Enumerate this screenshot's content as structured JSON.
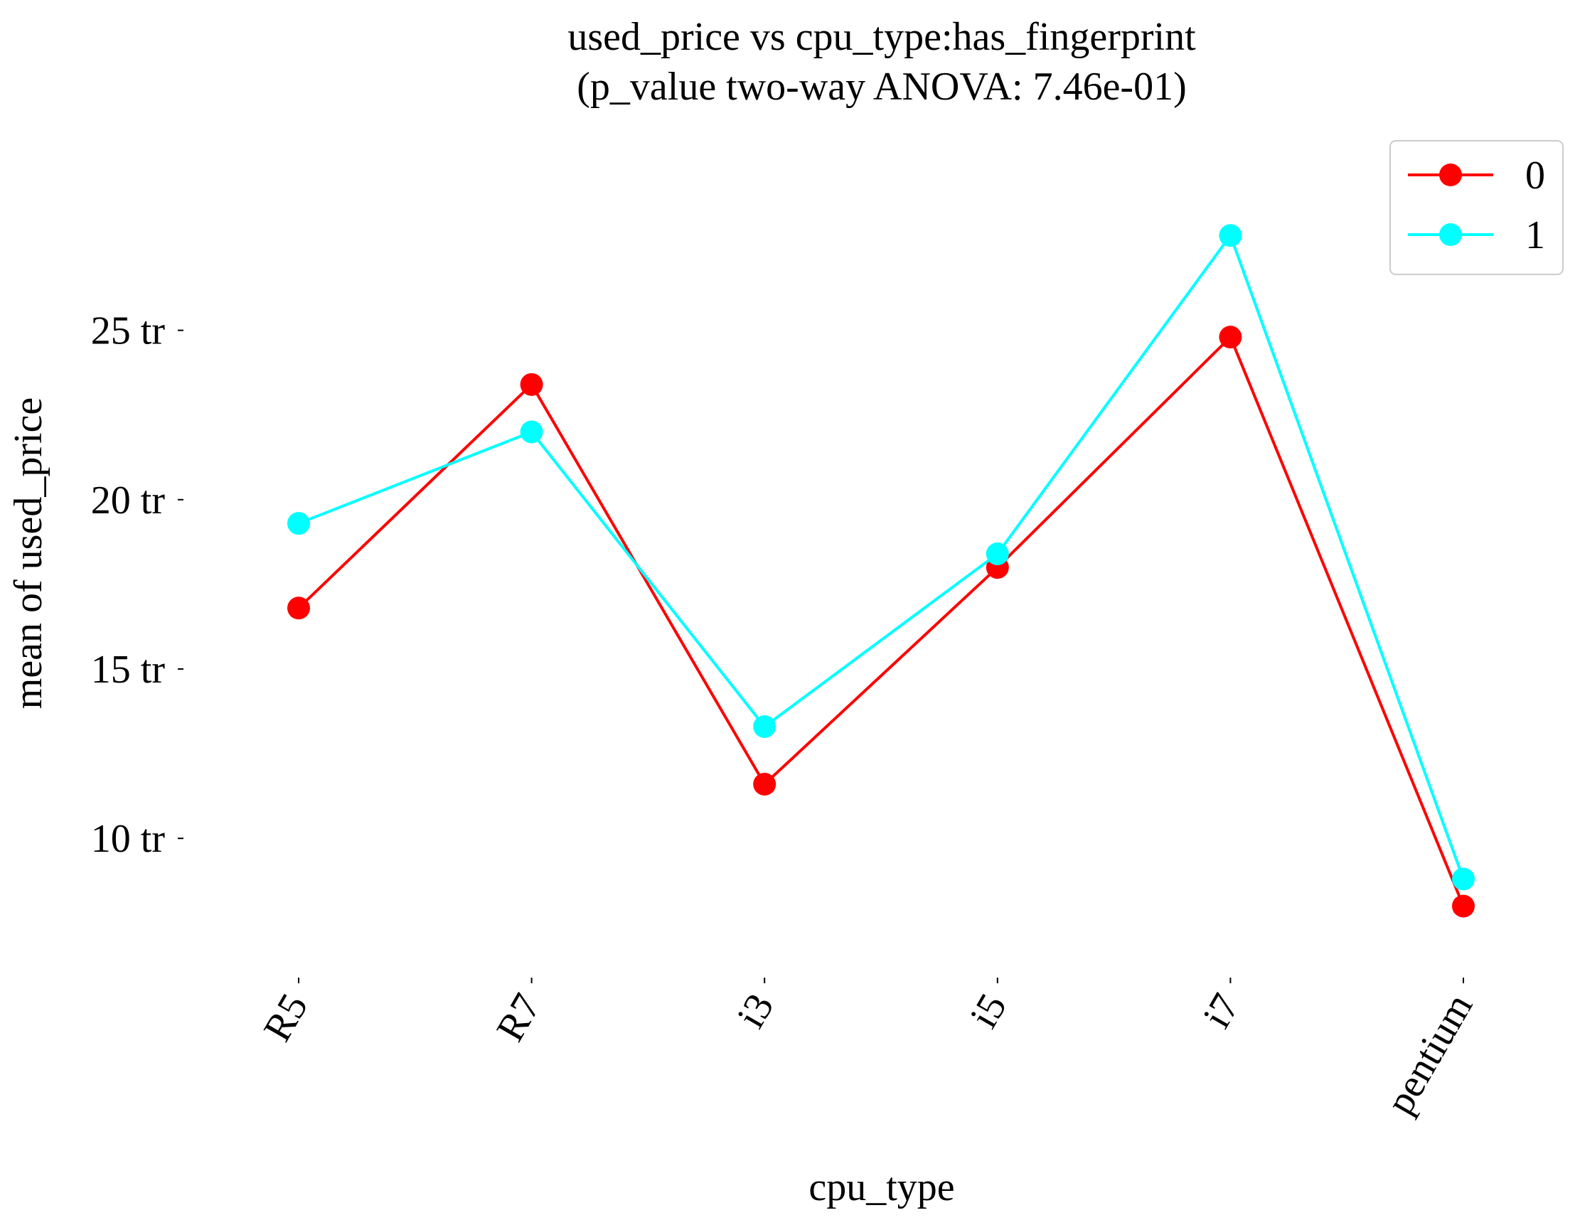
{
  "chart_data": {
    "type": "line",
    "title": "used_price vs cpu_type:has_fingerprint",
    "subtitle": "(p_value two-way ANOVA: 7.46e-01)",
    "xlabel": "cpu_type",
    "ylabel": "mean of used_price",
    "categories": [
      "R5",
      "R7",
      "i3",
      "i5",
      "i7",
      "pentium"
    ],
    "yticks": [
      {
        "value": 10,
        "label": "10 tr"
      },
      {
        "value": 15,
        "label": "15 tr"
      },
      {
        "value": 20,
        "label": "20 tr"
      },
      {
        "value": 25,
        "label": "25 tr"
      }
    ],
    "ylim": [
      6.1,
      29.4
    ],
    "grid": false,
    "legend_position": "top-right",
    "series": [
      {
        "name": "0",
        "color": "#ff0000",
        "values": [
          16.8,
          23.4,
          11.6,
          18.0,
          24.8,
          8.0
        ]
      },
      {
        "name": "1",
        "color": "#00ffff",
        "values": [
          19.3,
          22.0,
          13.3,
          18.4,
          27.8,
          8.8
        ]
      }
    ]
  }
}
